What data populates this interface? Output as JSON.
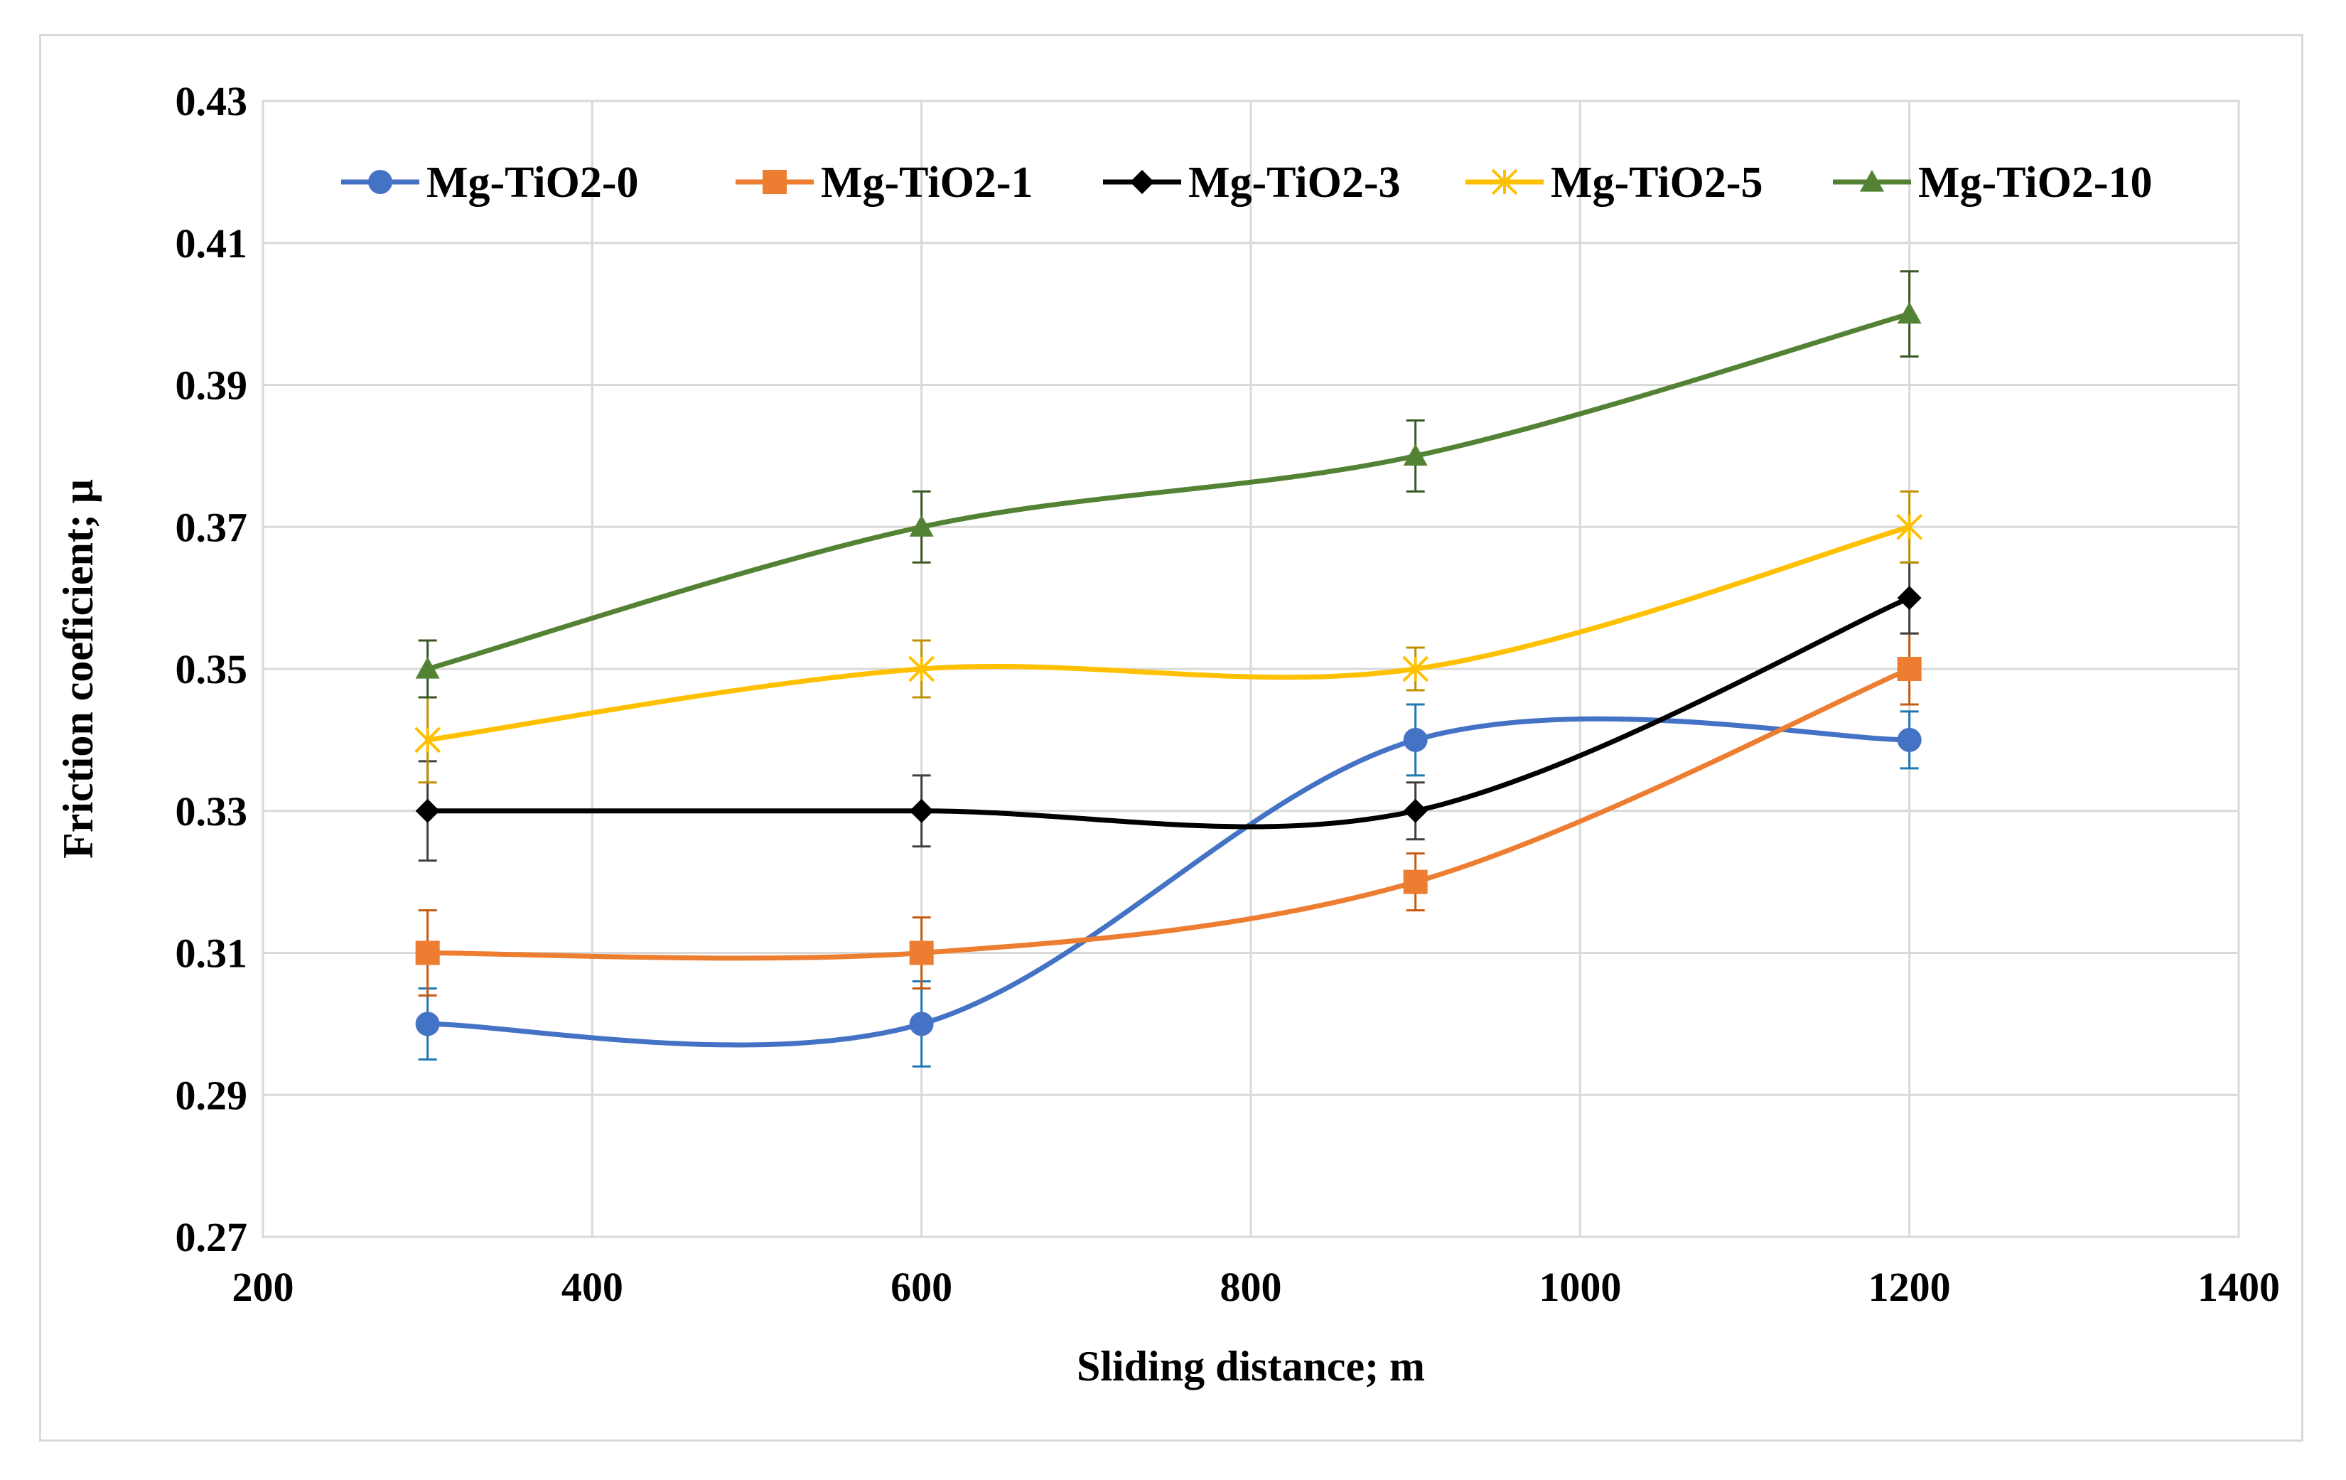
{
  "chart_data": {
    "type": "line",
    "smooth": true,
    "title": "",
    "xlabel": "Sliding distance; m",
    "ylabel": "Friction coeficient; μ",
    "xlim": [
      200,
      1400
    ],
    "ylim": [
      0.27,
      0.43
    ],
    "xticks": [
      200,
      400,
      600,
      800,
      1000,
      1200,
      1400
    ],
    "yticks": [
      0.27,
      0.29,
      0.31,
      0.33,
      0.35,
      0.37,
      0.39,
      0.41,
      0.43
    ],
    "xtick_labels": [
      "200",
      "400",
      "600",
      "800",
      "1000",
      "1200",
      "1400"
    ],
    "ytick_labels": [
      "0.27",
      "0.29",
      "0.31",
      "0.33",
      "0.35",
      "0.37",
      "0.39",
      "0.41",
      "0.43"
    ],
    "grid": true,
    "legend_position": "top",
    "x": [
      300,
      600,
      900,
      1200
    ],
    "series": [
      {
        "name": "Mg-TiO2-0",
        "color": "#4472c4",
        "error_color": "#1f77b4",
        "marker": "circle",
        "values": [
          0.3,
          0.3,
          0.34,
          0.34
        ],
        "errors": [
          0.005,
          0.006,
          0.005,
          0.004
        ]
      },
      {
        "name": "Mg-TiO2-1",
        "color": "#ed7d31",
        "error_color": "#c55a11",
        "marker": "square",
        "values": [
          0.31,
          0.31,
          0.32,
          0.35
        ],
        "errors": [
          0.006,
          0.005,
          0.004,
          0.005
        ]
      },
      {
        "name": "Mg-TiO2-3",
        "color": "#000000",
        "error_color": "#404040",
        "marker": "diamond",
        "values": [
          0.33,
          0.33,
          0.33,
          0.36
        ],
        "errors": [
          0.007,
          0.005,
          0.004,
          0.005
        ]
      },
      {
        "name": "Mg-TiO2-5",
        "color": "#ffc000",
        "error_color": "#bf9000",
        "marker": "star",
        "values": [
          0.34,
          0.35,
          0.35,
          0.37
        ],
        "errors": [
          0.006,
          0.004,
          0.003,
          0.005
        ]
      },
      {
        "name": "Mg-TiO2-10",
        "color": "#548235",
        "error_color": "#385723",
        "marker": "triangle",
        "values": [
          0.35,
          0.37,
          0.38,
          0.4
        ],
        "errors": [
          0.004,
          0.005,
          0.005,
          0.006
        ]
      }
    ]
  }
}
